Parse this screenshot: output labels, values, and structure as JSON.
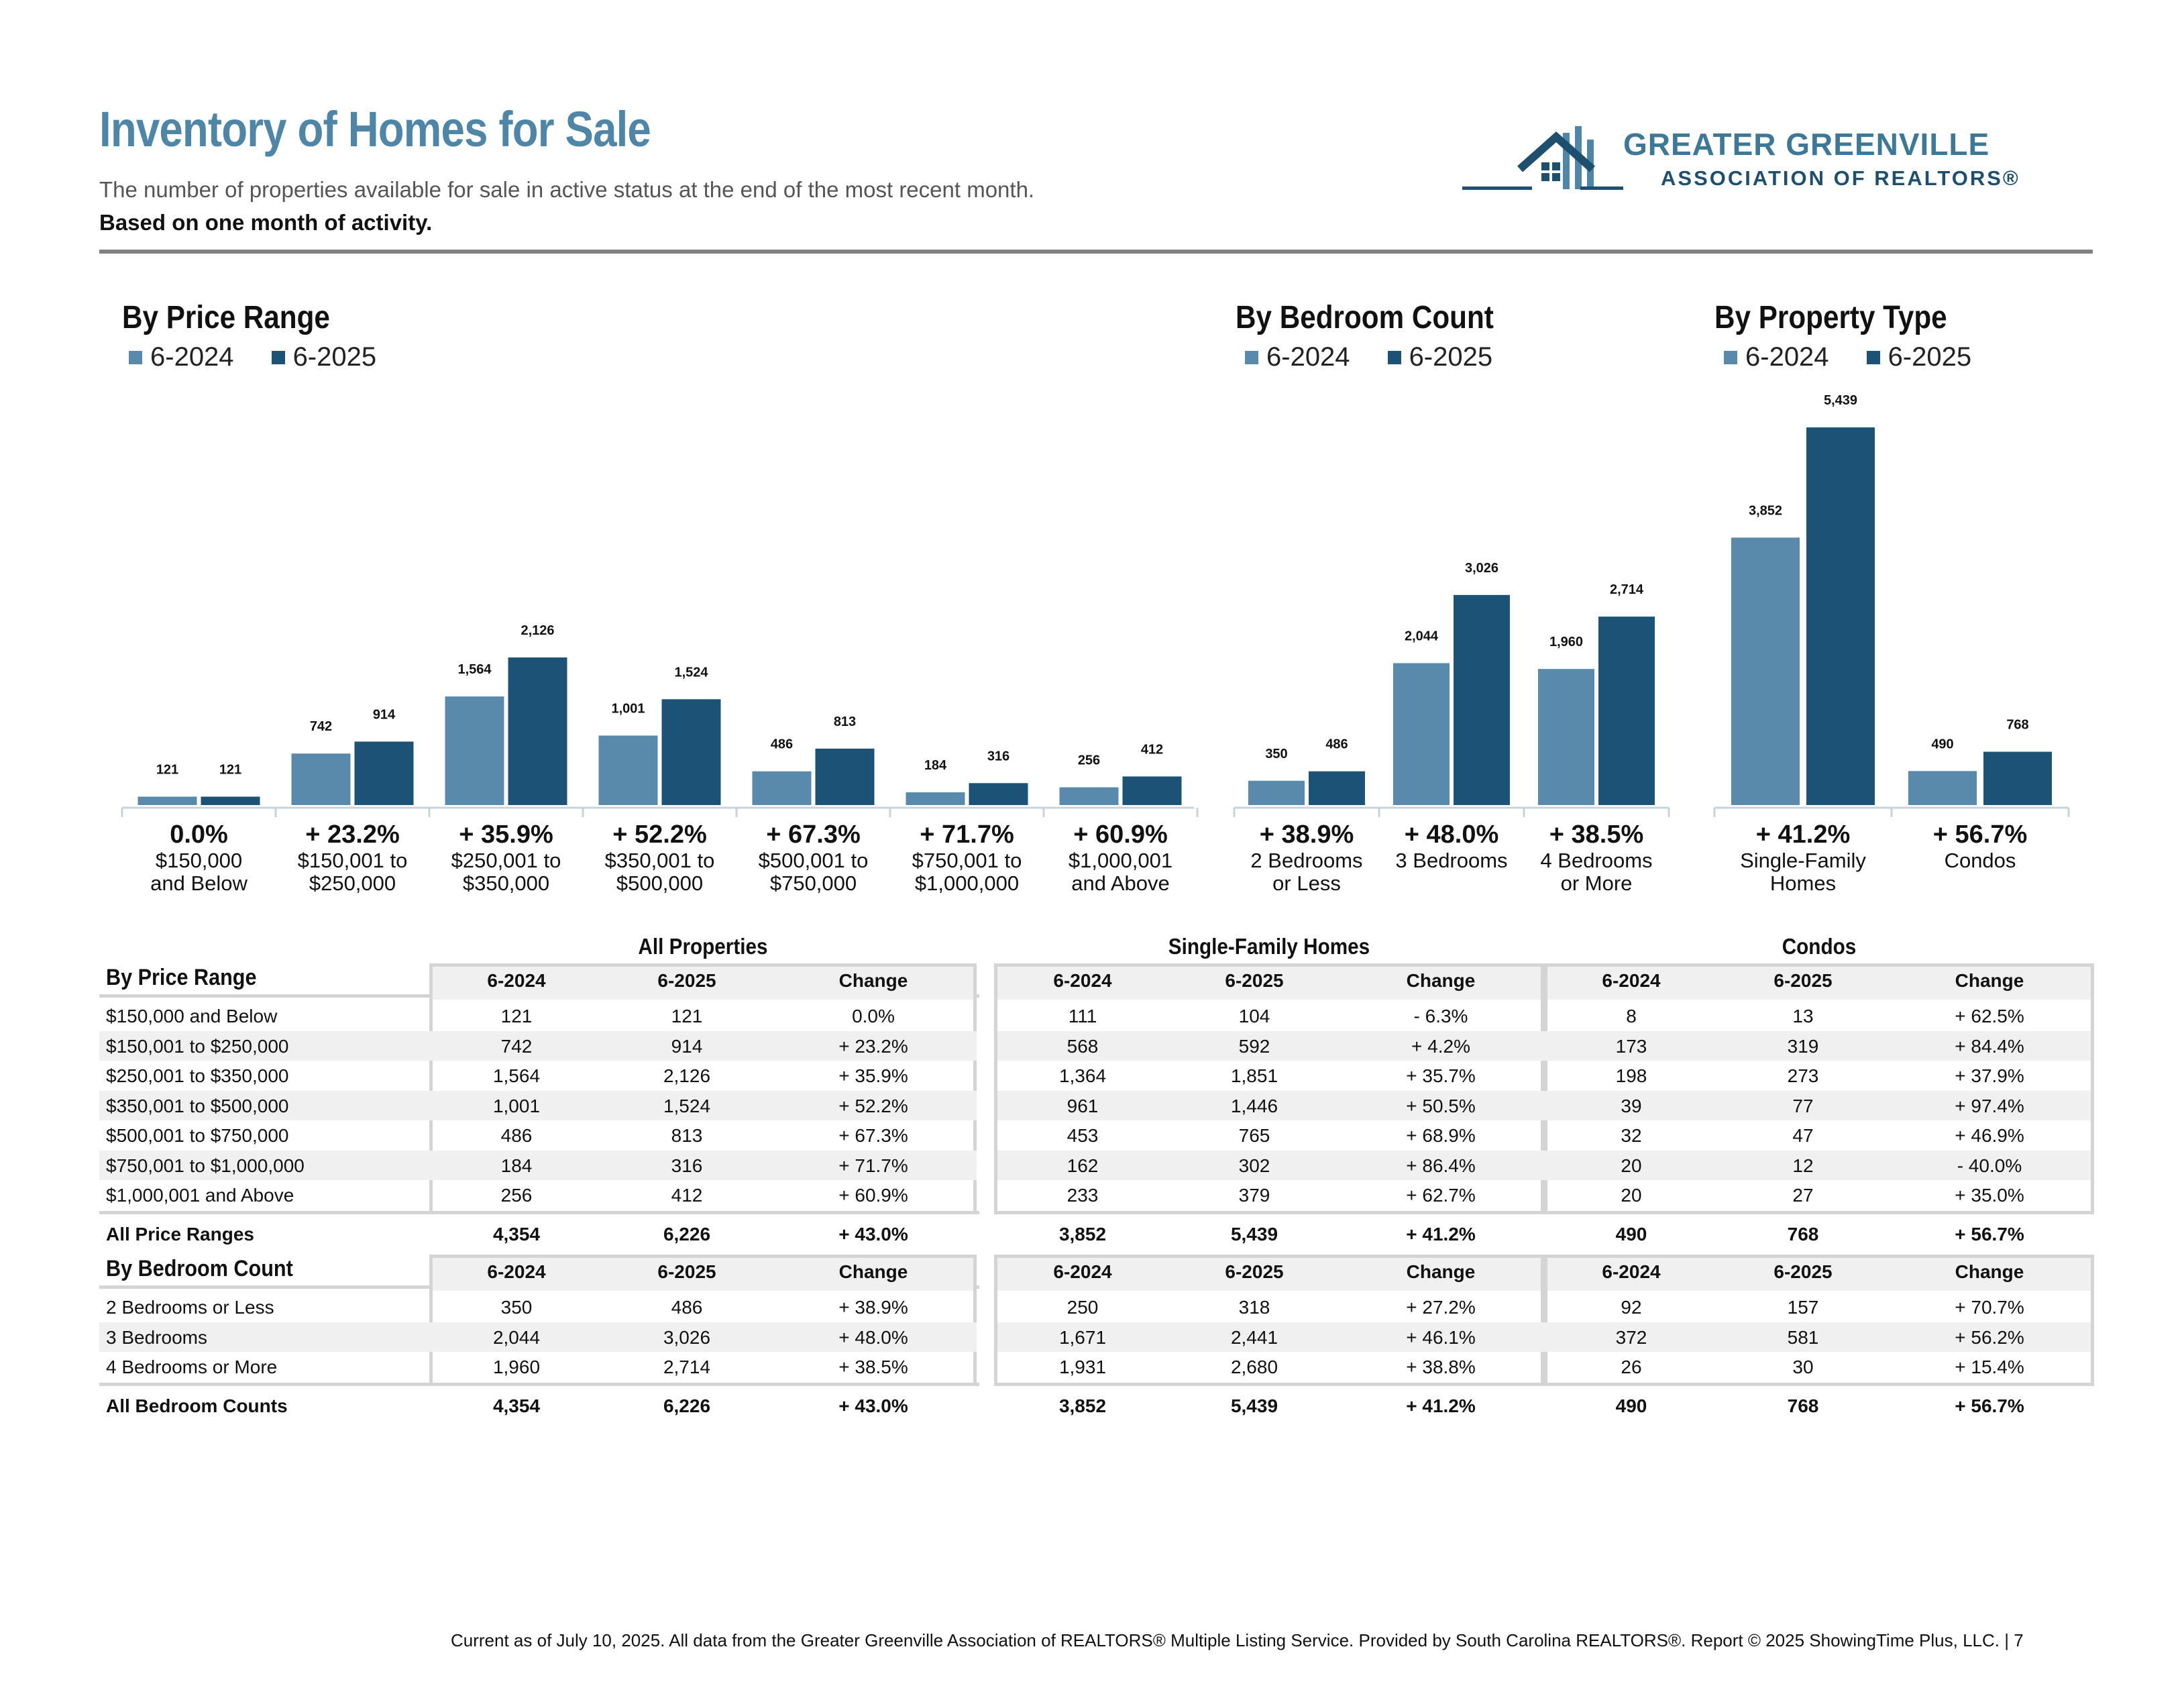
{
  "header": {
    "title": "Inventory of Homes for Sale",
    "subtitle_plain": "The number of properties available for sale in active status at the end of the most recent month.",
    "subtitle_bold": "Based on one month of activity."
  },
  "logo": {
    "line1": "GREATER GREENVILLE",
    "line2": "ASSOCIATION OF REALTORS®"
  },
  "colors": {
    "series_2024": "#5a8aab",
    "series_2025": "#1b5275",
    "title": "#4f86a8",
    "axis": "#c7d3dc"
  },
  "chart_data": [
    {
      "type": "bar",
      "title": "By Price Range",
      "legend": [
        "6-2024",
        "6-2025"
      ],
      "categories": [
        "$150,000 and Below",
        "$150,001 to $250,000",
        "$250,001 to $350,000",
        "$350,001 to $500,000",
        "$500,001 to $750,000",
        "$750,001 to $1,000,000",
        "$1,000,001 and Above"
      ],
      "category_lines": [
        [
          "$150,000",
          "and Below"
        ],
        [
          "$150,001 to",
          "$250,000"
        ],
        [
          "$250,001 to",
          "$350,000"
        ],
        [
          "$350,001 to",
          "$500,000"
        ],
        [
          "$500,001 to",
          "$750,000"
        ],
        [
          "$750,001 to",
          "$1,000,000"
        ],
        [
          "$1,000,001",
          "and Above"
        ]
      ],
      "change": [
        "0.0%",
        "+ 23.2%",
        "+ 35.9%",
        "+ 52.2%",
        "+ 67.3%",
        "+ 71.7%",
        "+ 60.9%"
      ],
      "series": [
        {
          "name": "6-2024",
          "values": [
            121,
            742,
            1564,
            1001,
            486,
            184,
            256
          ],
          "labels": [
            "121",
            "742",
            "1,564",
            "1,001",
            "486",
            "184",
            "256"
          ]
        },
        {
          "name": "6-2025",
          "values": [
            121,
            914,
            2126,
            1524,
            813,
            316,
            412
          ],
          "labels": [
            "121",
            "914",
            "2,126",
            "1,524",
            "813",
            "316",
            "412"
          ]
        }
      ]
    },
    {
      "type": "bar",
      "title": "By Bedroom Count",
      "legend": [
        "6-2024",
        "6-2025"
      ],
      "categories": [
        "2 Bedrooms or Less",
        "3 Bedrooms",
        "4 Bedrooms or More"
      ],
      "category_lines": [
        [
          "2 Bedrooms",
          "or Less"
        ],
        [
          "3 Bedrooms"
        ],
        [
          "4 Bedrooms",
          "or More"
        ]
      ],
      "change": [
        "+ 38.9%",
        "+ 48.0%",
        "+ 38.5%"
      ],
      "series": [
        {
          "name": "6-2024",
          "values": [
            350,
            2044,
            1960
          ],
          "labels": [
            "350",
            "2,044",
            "1,960"
          ]
        },
        {
          "name": "6-2025",
          "values": [
            486,
            3026,
            2714
          ],
          "labels": [
            "486",
            "3,026",
            "2,714"
          ]
        }
      ]
    },
    {
      "type": "bar",
      "title": "By Property Type",
      "legend": [
        "6-2024",
        "6-2025"
      ],
      "categories": [
        "Single-Family Homes",
        "Condos"
      ],
      "category_lines": [
        [
          "Single-Family",
          "Homes"
        ],
        [
          "Condos"
        ]
      ],
      "change": [
        "+ 41.2%",
        "+ 56.7%"
      ],
      "series": [
        {
          "name": "6-2024",
          "values": [
            3852,
            490
          ],
          "labels": [
            "3,852",
            "490"
          ]
        },
        {
          "name": "6-2025",
          "values": [
            5439,
            768
          ],
          "labels": [
            "5,439",
            "768"
          ]
        }
      ]
    }
  ],
  "table": {
    "groups": [
      "All Properties",
      "Single-Family Homes",
      "Condos"
    ],
    "col_headers": [
      "6-2024",
      "6-2025",
      "Change"
    ],
    "price": {
      "heading": "By Price Range",
      "rows": [
        {
          "label": "$150,000 and Below",
          "cells": [
            "121",
            "121",
            "0.0%",
            "111",
            "104",
            "- 6.3%",
            "8",
            "13",
            "+ 62.5%"
          ]
        },
        {
          "label": "$150,001 to $250,000",
          "cells": [
            "742",
            "914",
            "+ 23.2%",
            "568",
            "592",
            "+ 4.2%",
            "173",
            "319",
            "+ 84.4%"
          ]
        },
        {
          "label": "$250,001 to $350,000",
          "cells": [
            "1,564",
            "2,126",
            "+ 35.9%",
            "1,364",
            "1,851",
            "+ 35.7%",
            "198",
            "273",
            "+ 37.9%"
          ]
        },
        {
          "label": "$350,001 to $500,000",
          "cells": [
            "1,001",
            "1,524",
            "+ 52.2%",
            "961",
            "1,446",
            "+ 50.5%",
            "39",
            "77",
            "+ 97.4%"
          ]
        },
        {
          "label": "$500,001 to $750,000",
          "cells": [
            "486",
            "813",
            "+ 67.3%",
            "453",
            "765",
            "+ 68.9%",
            "32",
            "47",
            "+ 46.9%"
          ]
        },
        {
          "label": "$750,001 to $1,000,000",
          "cells": [
            "184",
            "316",
            "+ 71.7%",
            "162",
            "302",
            "+ 86.4%",
            "20",
            "12",
            "- 40.0%"
          ]
        },
        {
          "label": "$1,000,001 and Above",
          "cells": [
            "256",
            "412",
            "+ 60.9%",
            "233",
            "379",
            "+ 62.7%",
            "20",
            "27",
            "+ 35.0%"
          ]
        }
      ],
      "total": {
        "label": "All Price Ranges",
        "cells": [
          "4,354",
          "6,226",
          "+ 43.0%",
          "3,852",
          "5,439",
          "+ 41.2%",
          "490",
          "768",
          "+ 56.7%"
        ]
      }
    },
    "bedroom": {
      "heading": "By Bedroom Count",
      "rows": [
        {
          "label": "2 Bedrooms or Less",
          "cells": [
            "350",
            "486",
            "+ 38.9%",
            "250",
            "318",
            "+ 27.2%",
            "92",
            "157",
            "+ 70.7%"
          ]
        },
        {
          "label": "3 Bedrooms",
          "cells": [
            "2,044",
            "3,026",
            "+ 48.0%",
            "1,671",
            "2,441",
            "+ 46.1%",
            "372",
            "581",
            "+ 56.2%"
          ]
        },
        {
          "label": "4 Bedrooms or More",
          "cells": [
            "1,960",
            "2,714",
            "+ 38.5%",
            "1,931",
            "2,680",
            "+ 38.8%",
            "26",
            "30",
            "+ 15.4%"
          ]
        }
      ],
      "total": {
        "label": "All Bedroom Counts",
        "cells": [
          "4,354",
          "6,226",
          "+ 43.0%",
          "3,852",
          "5,439",
          "+ 41.2%",
          "490",
          "768",
          "+ 56.7%"
        ]
      }
    }
  },
  "footer": "Current as of July 10, 2025. All data from the Greater Greenville Association of REALTORS® Multiple Listing Service. Provided by South Carolina REALTORS®. Report © 2025 ShowingTime Plus, LLC. | 7"
}
